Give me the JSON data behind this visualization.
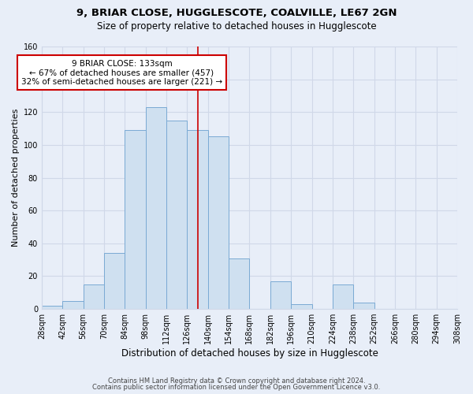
{
  "title": "9, BRIAR CLOSE, HUGGLESCOTE, COALVILLE, LE67 2GN",
  "subtitle": "Size of property relative to detached houses in Hugglescote",
  "xlabel": "Distribution of detached houses by size in Hugglescote",
  "ylabel": "Number of detached properties",
  "bin_edges": [
    28,
    42,
    56,
    70,
    84,
    98,
    112,
    126,
    140,
    154,
    168,
    182,
    196,
    210,
    224,
    238,
    252,
    266,
    280,
    294,
    308
  ],
  "bar_heights": [
    2,
    5,
    15,
    34,
    109,
    123,
    115,
    109,
    105,
    31,
    0,
    17,
    3,
    0,
    15,
    4,
    0,
    0,
    0,
    0
  ],
  "bar_color": "#cfe0f0",
  "bar_edge_color": "#7aaad4",
  "property_line_x": 133,
  "property_line_color": "#cc0000",
  "annotation_text": "9 BRIAR CLOSE: 133sqm\n← 67% of detached houses are smaller (457)\n32% of semi-detached houses are larger (221) →",
  "annotation_box_edge": "#cc0000",
  "annotation_box_face": "white",
  "ylim": [
    0,
    160
  ],
  "yticks": [
    0,
    20,
    40,
    60,
    80,
    100,
    120,
    140,
    160
  ],
  "footer_line1": "Contains HM Land Registry data © Crown copyright and database right 2024.",
  "footer_line2": "Contains public sector information licensed under the Open Government Licence v3.0.",
  "bg_color": "#e8eef8",
  "grid_color": "#d0d8e8",
  "title_fontsize": 9.5,
  "subtitle_fontsize": 8.5,
  "tick_fontsize": 7,
  "ylabel_fontsize": 8,
  "xlabel_fontsize": 8.5
}
